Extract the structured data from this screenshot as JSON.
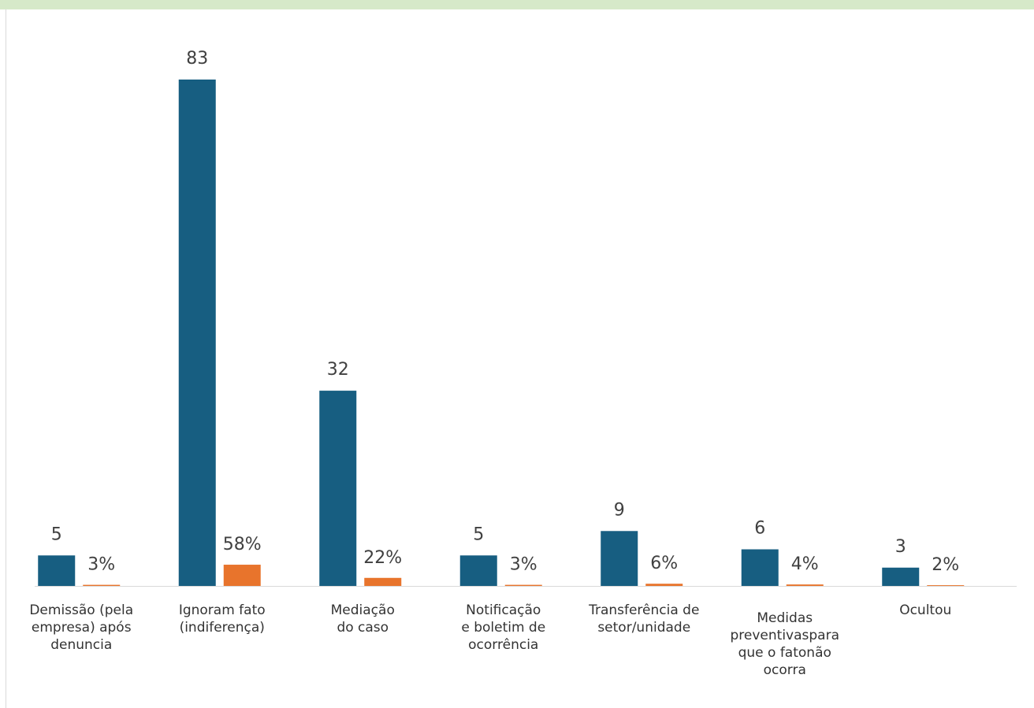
{
  "chart_data": {
    "type": "bar",
    "categories": [
      "Demissão (pela\nempresa) após\ndenuncia",
      "Ignoram fato\n(indiferença)",
      "Mediação\ndo caso",
      "Notificação\ne boletim de\nocorrência",
      "Transferência de\nsetor/unidade",
      "Medidas\npreventivaspara\nque o fatonão\nocorra",
      "Ocultou"
    ],
    "series": [
      {
        "values": [
          5,
          83,
          32,
          5,
          9,
          6,
          3
        ],
        "labels": [
          "5",
          "83",
          "32",
          "5",
          "9",
          "6",
          "3"
        ],
        "color": "#175e81"
      },
      {
        "values": [
          3,
          58,
          22,
          3,
          6,
          4,
          2
        ],
        "labels": [
          "3%",
          "58%",
          "22%",
          "3%",
          "6%",
          "4%",
          "2%"
        ],
        "color": "#e8742c"
      }
    ],
    "title": "",
    "xlabel": "",
    "ylabel": "",
    "grid": false,
    "legend": false
  }
}
